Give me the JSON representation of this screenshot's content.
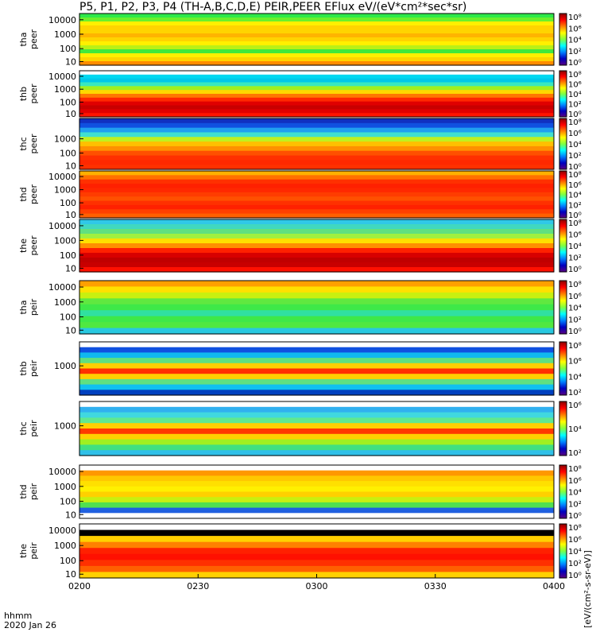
{
  "title": "P5, P1, P2, P3, P4 (TH-A,B,C,D,E) PEIR,PEER EFlux eV/(eV*cm²*sec*sr)",
  "x_axis": {
    "ticks": [
      "0200",
      "0230",
      "0300",
      "0330",
      "0400"
    ],
    "label_line1": "hhmm",
    "label_line2": "2020 Jan 26"
  },
  "colorbar_label": "[eV/(cm²-s-sr-eV)]",
  "colorbar_ticks_common": [
    "10⁸",
    "10⁶",
    "10⁴",
    "10²",
    "10⁰"
  ],
  "chart_data": [
    {
      "type": "heatmap",
      "ylabel_line1": "tha",
      "ylabel_line2": "peer",
      "yticks": [
        "10000",
        "1000",
        "100",
        "10"
      ],
      "colorbar_ticks": [
        "10⁸",
        "10⁶",
        "10⁴",
        "10²",
        "10⁰"
      ],
      "bands": [
        [
          "#2ee84a",
          "#6cf02c",
          "#fff000",
          "#ffd400",
          "#ffd400",
          "#ffb400",
          "#ffd400",
          "#fff000",
          "#baf016",
          "#42e83c",
          "#fff000",
          "#ffd400",
          "#ff8c00"
        ]
      ]
    },
    {
      "type": "heatmap",
      "ylabel_line1": "thb",
      "ylabel_line2": "peer",
      "yticks": [
        "10000",
        "1000",
        "100",
        "10"
      ],
      "colorbar_ticks": [
        "10⁸",
        "10⁶",
        "10⁴",
        "10²",
        "10⁰"
      ],
      "bands": [
        [
          "#ffffff",
          "#00d8f0",
          "#00c8e8",
          "#38e8c0",
          "#a0f020",
          "#ffd800",
          "#ff7800",
          "#ff2800",
          "#e00000",
          "#c80000",
          "#e00000",
          "#ff1400"
        ]
      ]
    },
    {
      "type": "heatmap",
      "ylabel_line1": "thc",
      "ylabel_line2": "peer",
      "yticks": [
        "1000",
        "100",
        "10"
      ],
      "colorbar_ticks": [
        "10⁸",
        "10⁶",
        "10⁴",
        "10²",
        "10⁰"
      ],
      "bands": [
        [
          "#1030c0",
          "#1050e0",
          "#20a0f0",
          "#40e0d0",
          "#c0f020",
          "#ffc000",
          "#ff9000",
          "#ff5000",
          "#ff3000",
          "#ff2800",
          "#ff3000"
        ]
      ]
    },
    {
      "type": "heatmap",
      "ylabel_line1": "thd",
      "ylabel_line2": "peer",
      "yticks": [
        "10000",
        "1000",
        "100",
        "10"
      ],
      "colorbar_ticks": [
        "10⁸",
        "10⁶",
        "10⁴",
        "10²",
        "10⁰"
      ],
      "bands": [
        [
          "#ffb000",
          "#ff7000",
          "#ff3000",
          "#ff2000",
          "#ff2800",
          "#ff3c00",
          "#ff5000",
          "#ff3000",
          "#ff2000",
          "#ff4000",
          "#ff6000"
        ]
      ]
    },
    {
      "type": "heatmap",
      "ylabel_line1": "the",
      "ylabel_line2": "peer",
      "yticks": [
        "10000",
        "1000",
        "100",
        "10"
      ],
      "colorbar_ticks": [
        "10⁸",
        "10⁶",
        "10⁴",
        "10²",
        "10⁰"
      ],
      "bands": [
        [
          "#30c8e8",
          "#40d8c0",
          "#60e080",
          "#a0f040",
          "#ffe000",
          "#ff9000",
          "#ff2000",
          "#d80000",
          "#c00000",
          "#c80000",
          "#ff1000"
        ]
      ]
    },
    {
      "type": "heatmap",
      "ylabel_line1": "tha",
      "ylabel_line2": "peir",
      "yticks": [
        "10000",
        "1000",
        "100",
        "10"
      ],
      "colorbar_ticks": [
        "10⁸",
        "10⁶",
        "10⁴",
        "10²",
        "10⁰"
      ],
      "bands": [
        [
          "#ffa000",
          "#ffe000",
          "#c8f010",
          "#60e840",
          "#3ee848",
          "#30e0a0",
          "#3ee848",
          "#50e840",
          "#28c8e0"
        ]
      ]
    },
    {
      "type": "heatmap",
      "ylabel_line1": "thb",
      "ylabel_line2": "peir",
      "yticks": [
        "1000"
      ],
      "colorbar_ticks": [
        "10⁸",
        "10⁶",
        "10⁴",
        "10²"
      ],
      "bands": [
        [
          "#ffffff",
          "#1050e0",
          "#10b8f0",
          "#60e080",
          "#ffd000",
          "#ff3000",
          "#ffd000",
          "#60e080",
          "#10c0f0",
          "#0040c0"
        ]
      ]
    },
    {
      "type": "heatmap",
      "ylabel_line1": "thc",
      "ylabel_line2": "peir",
      "yticks": [
        "1000"
      ],
      "colorbar_ticks": [
        "10⁶",
        "10⁴",
        "10²"
      ],
      "bands": [
        [
          "#ffffff",
          "#30b0f0",
          "#40d8e0",
          "#60e890",
          "#ffd000",
          "#ff3800",
          "#ffd000",
          "#a0f020",
          "#40e080",
          "#30c0e8"
        ]
      ]
    },
    {
      "type": "heatmap",
      "ylabel_line1": "thd",
      "ylabel_line2": "peir",
      "yticks": [
        "10000",
        "1000",
        "100",
        "10"
      ],
      "colorbar_ticks": [
        "10⁸",
        "10⁶",
        "10⁴",
        "10²",
        "10⁰"
      ],
      "bands": [
        [
          "#ffffff",
          "#ff9800",
          "#ffc800",
          "#ffe000",
          "#fff000",
          "#ffd000",
          "#c8f010",
          "#50e050",
          "#2060e0",
          "#ffffff"
        ]
      ]
    },
    {
      "type": "heatmap",
      "ylabel_line1": "the",
      "ylabel_line2": "peir",
      "yticks": [
        "10000",
        "1000",
        "100",
        "10"
      ],
      "colorbar_ticks": [
        "10⁸",
        "10⁶",
        "10⁴",
        "10²",
        "10⁰"
      ],
      "bands": [
        [
          "#ffffff",
          "#000000",
          "#ffd000",
          "#ff8000",
          "#ff2000",
          "#ff1000",
          "#ff3000",
          "#ff6000",
          "#ffd000"
        ]
      ]
    }
  ]
}
